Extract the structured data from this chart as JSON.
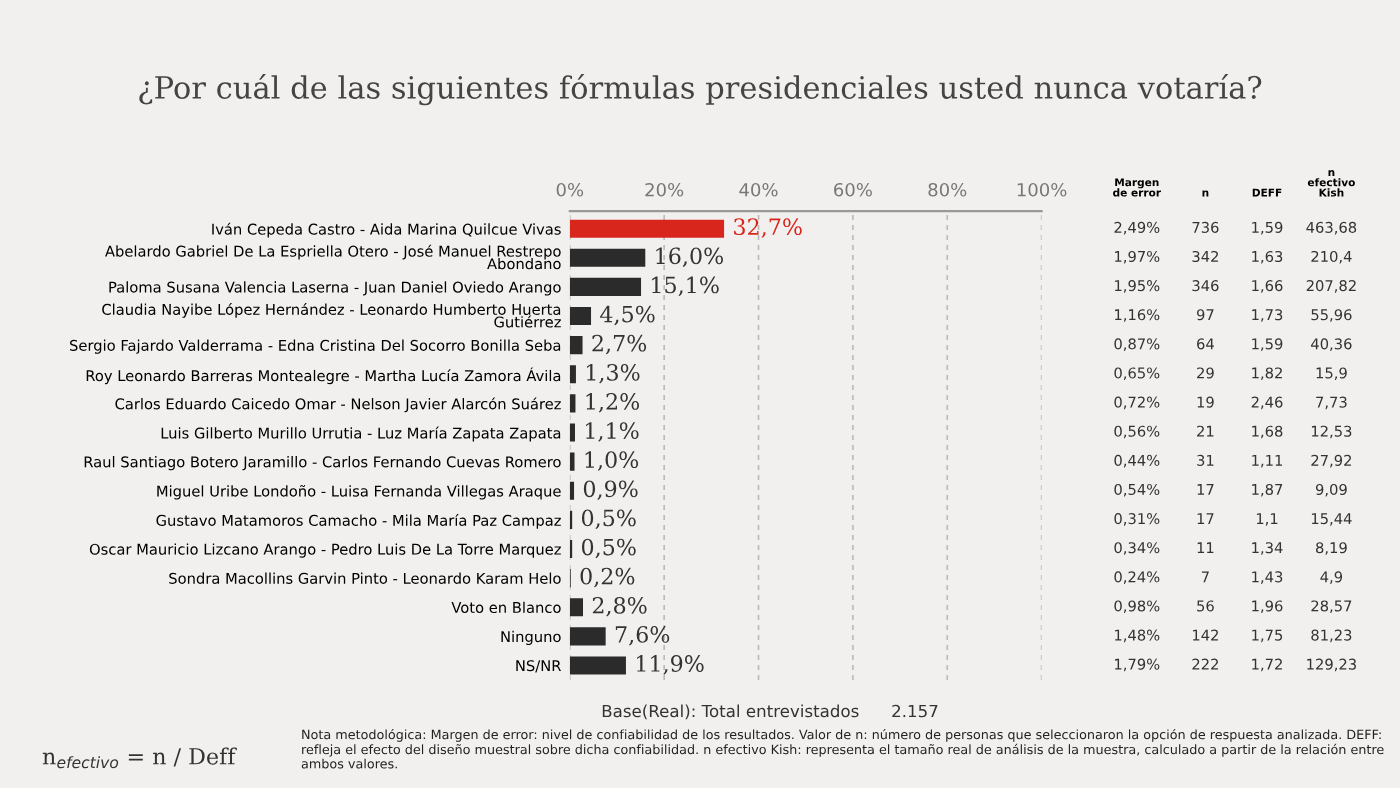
{
  "chart_data": {
    "type": "bar",
    "orientation": "horizontal",
    "title": "¿Por cuál de las siguientes fórmulas presidenciales usted nunca votaría?",
    "categories": [
      "Iván Cepeda Castro - Aida Marina Quilcue Vivas",
      "Abelardo Gabriel De La Espriella Otero - José Manuel Restrepo\nAbondano",
      "Paloma Susana Valencia Laserna - Juan Daniel Oviedo Arango",
      "Claudia Nayibe López Hernández - Leonardo Humberto Huerta\nGutiérrez",
      "Sergio Fajardo Valderrama - Edna Cristina Del Socorro Bonilla Seba",
      "Roy Leonardo Barreras Montealegre - Martha Lucía Zamora Ávila",
      "Carlos Eduardo Caicedo Omar - Nelson Javier Alarcón Suárez",
      "Luis Gilberto Murillo Urrutia - Luz María Zapata Zapata",
      "Raul Santiago Botero Jaramillo - Carlos Fernando Cuevas Romero",
      "Miguel Uribe Londoño - Luisa Fernanda Villegas Araque",
      "Gustavo Matamoros Camacho - Mila María Paz Campaz",
      "Oscar Mauricio Lizcano Arango - Pedro Luis De La Torre Marquez",
      "Sondra Macollins Garvin Pinto - Leonardo Karam Helo",
      "Voto en Blanco",
      "Ninguno",
      "NS/NR"
    ],
    "values": [
      32.7,
      16.0,
      15.1,
      4.5,
      2.7,
      1.3,
      1.2,
      1.1,
      1.0,
      0.9,
      0.5,
      0.5,
      0.2,
      2.8,
      7.6,
      11.9
    ],
    "value_labels": [
      "32,7%",
      "16,0%",
      "15,1%",
      "4,5%",
      "2,7%",
      "1,3%",
      "1,2%",
      "1,1%",
      "1,0%",
      "0,9%",
      "0,5%",
      "0,5%",
      "0,2%",
      "2,8%",
      "7,6%",
      "11,9%"
    ],
    "colors": [
      "#d9261c",
      "#2b2b2b",
      "#2b2b2b",
      "#2b2b2b",
      "#2b2b2b",
      "#2b2b2b",
      "#2b2b2b",
      "#2b2b2b",
      "#2b2b2b",
      "#2b2b2b",
      "#2b2b2b",
      "#2b2b2b",
      "#2b2b2b",
      "#2b2b2b",
      "#2b2b2b",
      "#2b2b2b"
    ],
    "xlim": [
      0,
      100
    ],
    "xticks": [
      {
        "value": 0,
        "label": "0%"
      },
      {
        "value": 20,
        "label": "20%"
      },
      {
        "value": 40,
        "label": "40%"
      },
      {
        "value": 60,
        "label": "60%"
      },
      {
        "value": 80,
        "label": "80%"
      },
      {
        "value": 100,
        "label": "100%"
      }
    ],
    "grid": "x",
    "legend": false,
    "annotations": [
      "Margen\nde error",
      "n",
      "DEFF",
      "n\nefectivo\nKish",
      "2,49%",
      "736",
      "1,59",
      "463,68",
      "1,97%",
      "342",
      "1,63",
      "210,4",
      "1,95%",
      "346",
      "1,66",
      "207,82",
      "1,16%",
      "97",
      "1,73",
      "55,96",
      "0,87%",
      "64",
      "1,59",
      "40,36",
      "0,65%",
      "29",
      "1,82",
      "15,9",
      "0,72%",
      "19",
      "2,46",
      "7,73",
      "0,56%",
      "21",
      "1,68",
      "12,53",
      "0,44%",
      "31",
      "1,11",
      "27,92",
      "0,54%",
      "17",
      "1,87",
      "9,09",
      "0,31%",
      "17",
      "1,1",
      "15,44",
      "0,34%",
      "11",
      "1,34",
      "8,19",
      "0,24%",
      "7",
      "1,43",
      "4,9",
      "0,98%",
      "56",
      "1,96",
      "28,57",
      "1,48%",
      "142",
      "1,75",
      "81,23",
      "1,79%",
      "222",
      "1,72",
      "129,23",
      "Base(Real): Total entrevistados      2.157",
      "n$_{efectivo}$ = n / Deff",
      "Nota metodológica: Margen de error: nivel de confiabilidad de los resultados. Valor de n: número de personas que seleccionaron la opción de respuesta analizada. DEFF: refleja el efecto del diseño muestral sobre dicha confiabilidad. n efectivo Kish: representa el tamaño real de análisis de la muestra, calculado a partir de la relación entre ambos valores."
    ]
  }
}
